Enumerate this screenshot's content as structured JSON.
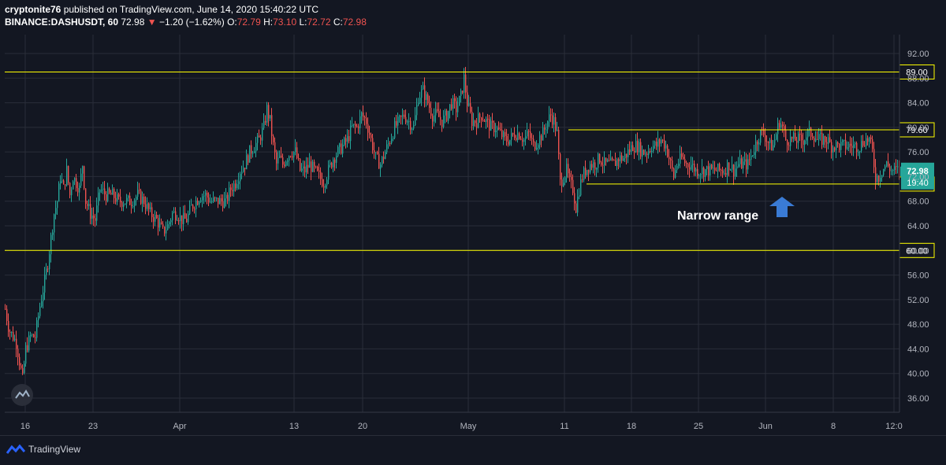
{
  "header": {
    "line1_author": "cryptonite76",
    "line1_rest": "published on TradingView.com, June 14, 2020 15:40:22 UTC",
    "symbol": "BINANCE:DASHUSDT, 60",
    "last": "72.98",
    "change": "−1.20 (−1.62%)",
    "o_label": "O:",
    "o_val": "72.79",
    "h_label": "H:",
    "h_val": "73.10",
    "l_label": "L:",
    "l_val": "72.72",
    "c_label": "C:",
    "c_val": "72.98",
    "down_arrow": "▼"
  },
  "footer": {
    "brand": "TradingView",
    "logo_icon": "tradingview-logo-icon"
  },
  "colors": {
    "background": "#131722",
    "grid": "#2a2e39",
    "up": "#26a69a",
    "down": "#ef5350",
    "level_line": "#ffff00",
    "price_tag": "#26a69a",
    "arrow": "#2962ff"
  },
  "chart_data": {
    "type": "candlestick",
    "title": "BINANCE:DASHUSDT, 60",
    "ylim": [
      34,
      94
    ],
    "y_ticks": [
      "36.00",
      "40.00",
      "44.00",
      "48.00",
      "52.00",
      "56.00",
      "60.00",
      "64.00",
      "68.00",
      "72.00",
      "76.00",
      "80.00",
      "84.00",
      "88.00",
      "92.00"
    ],
    "x_ticks": [
      "16",
      "23",
      "Apr",
      "13",
      "20",
      "May",
      "11",
      "18",
      "25",
      "Jun",
      "8",
      "12:0"
    ],
    "price_path": [
      [
        0,
        50.5
      ],
      [
        5,
        47
      ],
      [
        10,
        46
      ],
      [
        14,
        45
      ],
      [
        18,
        42
      ],
      [
        22,
        39
      ],
      [
        26,
        44
      ],
      [
        32,
        46
      ],
      [
        38,
        46
      ],
      [
        44,
        51
      ],
      [
        50,
        55
      ],
      [
        54,
        58
      ],
      [
        58,
        62
      ],
      [
        62,
        66
      ],
      [
        66,
        68
      ],
      [
        70,
        72
      ],
      [
        74,
        70
      ],
      [
        78,
        73
      ],
      [
        82,
        69
      ],
      [
        86,
        72
      ],
      [
        90,
        71
      ],
      [
        94,
        70
      ],
      [
        98,
        74
      ],
      [
        102,
        68
      ],
      [
        108,
        66
      ],
      [
        114,
        65
      ],
      [
        120,
        70
      ],
      [
        128,
        69
      ],
      [
        136,
        69
      ],
      [
        144,
        68
      ],
      [
        152,
        68
      ],
      [
        160,
        68
      ],
      [
        168,
        69
      ],
      [
        176,
        68
      ],
      [
        184,
        66
      ],
      [
        192,
        65
      ],
      [
        200,
        63
      ],
      [
        206,
        64
      ],
      [
        212,
        66
      ],
      [
        218,
        66
      ],
      [
        224,
        65
      ],
      [
        230,
        65
      ],
      [
        236,
        67
      ],
      [
        242,
        68
      ],
      [
        248,
        69
      ],
      [
        254,
        69
      ],
      [
        260,
        68
      ],
      [
        266,
        68
      ],
      [
        272,
        68
      ],
      [
        280,
        68
      ],
      [
        286,
        70
      ],
      [
        292,
        71
      ],
      [
        298,
        73
      ],
      [
        304,
        74
      ],
      [
        310,
        76
      ],
      [
        316,
        77
      ],
      [
        322,
        78
      ],
      [
        328,
        80
      ],
      [
        332,
        83
      ],
      [
        336,
        81
      ],
      [
        340,
        77
      ],
      [
        344,
        74
      ],
      [
        348,
        75
      ],
      [
        352,
        74
      ],
      [
        356,
        75
      ],
      [
        362,
        76
      ],
      [
        368,
        76
      ],
      [
        374,
        73
      ],
      [
        380,
        73
      ],
      [
        386,
        74
      ],
      [
        392,
        73
      ],
      [
        398,
        72
      ],
      [
        404,
        71
      ],
      [
        410,
        73
      ],
      [
        416,
        75
      ],
      [
        422,
        76
      ],
      [
        428,
        77
      ],
      [
        434,
        78
      ],
      [
        440,
        80
      ],
      [
        446,
        80
      ],
      [
        452,
        82
      ],
      [
        458,
        81
      ],
      [
        464,
        78
      ],
      [
        470,
        75
      ],
      [
        476,
        74
      ],
      [
        482,
        76
      ],
      [
        488,
        78
      ],
      [
        494,
        80
      ],
      [
        500,
        81
      ],
      [
        506,
        82
      ],
      [
        512,
        81
      ],
      [
        518,
        80
      ],
      [
        524,
        85
      ],
      [
        530,
        86
      ],
      [
        536,
        84
      ],
      [
        542,
        82
      ],
      [
        548,
        82
      ],
      [
        554,
        81
      ],
      [
        560,
        82
      ],
      [
        566,
        84
      ],
      [
        572,
        83
      ],
      [
        578,
        85
      ],
      [
        582,
        88
      ],
      [
        586,
        84
      ],
      [
        592,
        81
      ],
      [
        598,
        81
      ],
      [
        604,
        82
      ],
      [
        610,
        81
      ],
      [
        616,
        80
      ],
      [
        622,
        80
      ],
      [
        628,
        79
      ],
      [
        634,
        78
      ],
      [
        640,
        78
      ],
      [
        646,
        79
      ],
      [
        652,
        79
      ],
      [
        658,
        78
      ],
      [
        664,
        79
      ],
      [
        670,
        77
      ],
      [
        676,
        78
      ],
      [
        682,
        79
      ],
      [
        688,
        81
      ],
      [
        692,
        82
      ],
      [
        696,
        81
      ],
      [
        700,
        79
      ],
      [
        704,
        71
      ],
      [
        708,
        72
      ],
      [
        712,
        73
      ],
      [
        716,
        71
      ],
      [
        720,
        70
      ],
      [
        724,
        67
      ],
      [
        728,
        70
      ],
      [
        732,
        72
      ],
      [
        736,
        73
      ],
      [
        742,
        74
      ],
      [
        748,
        74
      ],
      [
        754,
        75
      ],
      [
        760,
        74
      ],
      [
        766,
        74
      ],
      [
        772,
        74
      ],
      [
        778,
        75
      ],
      [
        784,
        75
      ],
      [
        790,
        76
      ],
      [
        796,
        77
      ],
      [
        802,
        77
      ],
      [
        808,
        76
      ],
      [
        814,
        76
      ],
      [
        820,
        77
      ],
      [
        826,
        77
      ],
      [
        832,
        78
      ],
      [
        838,
        77
      ],
      [
        844,
        74
      ],
      [
        848,
        72
      ],
      [
        852,
        74
      ],
      [
        858,
        75
      ],
      [
        864,
        74
      ],
      [
        870,
        74
      ],
      [
        876,
        73
      ],
      [
        882,
        73
      ],
      [
        888,
        73
      ],
      [
        894,
        73
      ],
      [
        900,
        73
      ],
      [
        906,
        73
      ],
      [
        912,
        73
      ],
      [
        918,
        74
      ],
      [
        924,
        73
      ],
      [
        930,
        74
      ],
      [
        936,
        74
      ],
      [
        942,
        74
      ],
      [
        948,
        76
      ],
      [
        954,
        78
      ],
      [
        958,
        79
      ],
      [
        962,
        79
      ],
      [
        966,
        78
      ],
      [
        970,
        77
      ],
      [
        974,
        77
      ],
      [
        978,
        79
      ],
      [
        982,
        81
      ],
      [
        986,
        80
      ],
      [
        990,
        78
      ],
      [
        994,
        78
      ],
      [
        1000,
        78
      ],
      [
        1006,
        78
      ],
      [
        1012,
        78
      ],
      [
        1018,
        79
      ],
      [
        1024,
        79
      ],
      [
        1030,
        78
      ],
      [
        1036,
        78
      ],
      [
        1042,
        78
      ],
      [
        1048,
        77
      ],
      [
        1054,
        77
      ],
      [
        1060,
        77
      ],
      [
        1066,
        77
      ],
      [
        1072,
        77
      ],
      [
        1078,
        77
      ],
      [
        1084,
        77
      ],
      [
        1090,
        78
      ],
      [
        1096,
        78
      ],
      [
        1100,
        76
      ],
      [
        1104,
        72
      ],
      [
        1108,
        72
      ],
      [
        1112,
        73
      ],
      [
        1118,
        74
      ],
      [
        1124,
        73
      ],
      [
        1130,
        73
      ],
      [
        1136,
        73
      ]
    ],
    "levels": [
      {
        "value": 89.0,
        "label": "89.00",
        "x_start": 0
      },
      {
        "value": 79.6,
        "label": "79.60",
        "x_start": 715
      },
      {
        "value": 70.79,
        "label": "70.79",
        "x_start": 738
      },
      {
        "value": 60.0,
        "label": "60.00",
        "x_start": 0
      }
    ],
    "last_price": {
      "value": 72.98,
      "label": "72.98",
      "countdown": "19:40"
    },
    "annotation": "Narrow range"
  }
}
